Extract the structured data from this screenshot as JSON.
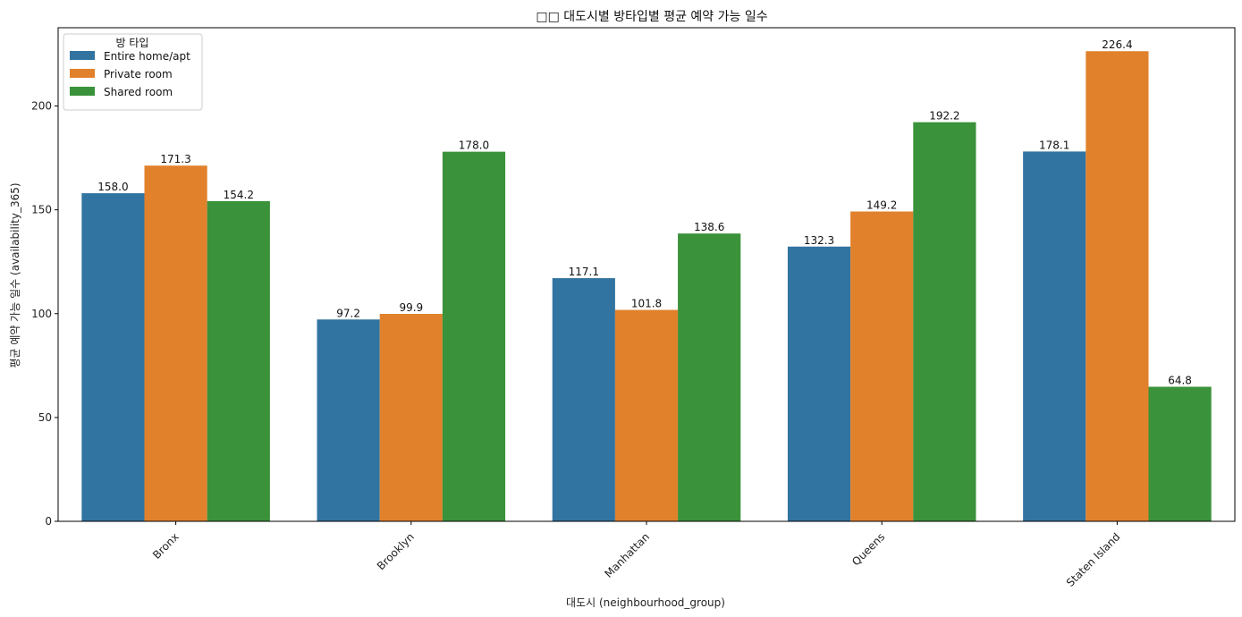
{
  "chart_data": {
    "type": "bar",
    "title": "□□ 대도시별 방타입별 평균 예약 가능 일수",
    "xlabel": "대도시 (neighbourhood_group)",
    "ylabel": "평균 예약 가능 일수 (availability_365)",
    "categories": [
      "Bronx",
      "Brooklyn",
      "Manhattan",
      "Queens",
      "Staten Island"
    ],
    "series": [
      {
        "name": "Entire home/apt",
        "color": "#3274a1",
        "values": [
          158.0,
          97.2,
          117.1,
          132.3,
          178.1
        ]
      },
      {
        "name": "Private room",
        "color": "#e1812c",
        "values": [
          171.3,
          99.9,
          101.8,
          149.2,
          226.4
        ]
      },
      {
        "name": "Shared room",
        "color": "#3a923a",
        "values": [
          154.2,
          178.0,
          138.6,
          192.2,
          64.8
        ]
      }
    ],
    "yticks": [
      0,
      50,
      100,
      150,
      200
    ],
    "ylim": [
      0,
      237.7
    ],
    "legend": {
      "title": "방 타입",
      "position": "top-left"
    },
    "grid": false,
    "bar_label_format": "1 decimal",
    "xtick_rotation_deg": 45
  }
}
